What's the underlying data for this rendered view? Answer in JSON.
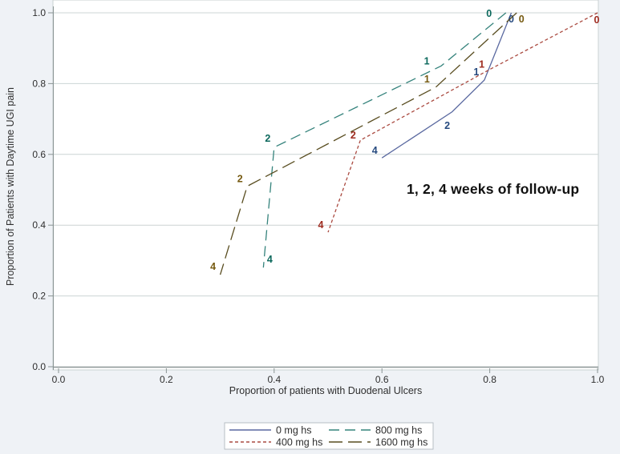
{
  "figure": {
    "background_color": "#eff2f6",
    "plot_background_color": "#ffffff",
    "gridline_color": "#ccd4d4",
    "axis_color": "#8a9494",
    "frame_color": "#c9d1d1",
    "tick_text_color": "#2f2f2f"
  },
  "chart_data": {
    "type": "line",
    "title": "",
    "xlabel": "Proportion of patients with Duodenal Ulcers",
    "ylabel": "Proportion of Patients with Daytime UGI pain",
    "annotation": "1, 2, 4 weeks of follow-up",
    "point_label_meaning": "weeks of follow-up (0, 1, 2, 4)",
    "xlim": [
      0.0,
      1.0
    ],
    "ylim": [
      0.0,
      1.0
    ],
    "xtick_labels": [
      "0.0",
      "0.2",
      "0.4",
      "0.6",
      "0.8",
      "1.0"
    ],
    "ytick_labels": [
      "0.0",
      "0.2",
      "0.4",
      "0.6",
      "0.8",
      "1.0"
    ],
    "xticks": [
      0.0,
      0.2,
      0.4,
      0.6,
      0.8,
      1.0
    ],
    "yticks": [
      0.0,
      0.2,
      0.4,
      0.6,
      0.8,
      1.0
    ],
    "grid": "horizontal",
    "legend_position": "bottom",
    "series": [
      {
        "name": "0 mg hs",
        "color": "#5a69a0",
        "label_color": "#25497e",
        "dasharray": "",
        "points": [
          {
            "week": "0",
            "x": 0.84,
            "y": 1.0,
            "dx": 0,
            "dy": 8
          },
          {
            "week": "1",
            "x": 0.79,
            "y": 0.81,
            "dx": -10,
            "dy": -10
          },
          {
            "week": "2",
            "x": 0.73,
            "y": 0.72,
            "dx": -6,
            "dy": 17
          },
          {
            "week": "4",
            "x": 0.6,
            "y": 0.59,
            "dx": -9,
            "dy": -9
          }
        ]
      },
      {
        "name": "400 mg hs",
        "color": "#aa4a40",
        "label_color": "#9e2b1f",
        "dasharray": "4 3",
        "points": [
          {
            "week": "0",
            "x": 1.0,
            "y": 1.0,
            "dx": -1,
            "dy": 9
          },
          {
            "week": "1",
            "x": 0.8,
            "y": 0.84,
            "dx": -10,
            "dy": -6
          },
          {
            "week": "2",
            "x": 0.56,
            "y": 0.64,
            "dx": -9,
            "dy": -6
          },
          {
            "week": "4",
            "x": 0.5,
            "y": 0.38,
            "dx": -9,
            "dy": -9
          }
        ]
      },
      {
        "name": "800 mg hs",
        "color": "#35837c",
        "label_color": "#0b685c",
        "dasharray": "13 7",
        "points": [
          {
            "week": "0",
            "x": 0.83,
            "y": 1.0,
            "dx": -21,
            "dy": 1
          },
          {
            "week": "1",
            "x": 0.71,
            "y": 0.85,
            "dx": -18,
            "dy": -6
          },
          {
            "week": "2",
            "x": 0.4,
            "y": 0.62,
            "dx": -8,
            "dy": -11
          },
          {
            "week": "4",
            "x": 0.38,
            "y": 0.28,
            "dx": 8,
            "dy": -10
          }
        ]
      },
      {
        "name": "1600 mg hs",
        "color": "#594d20",
        "label_color": "#765a11",
        "dasharray": "17 7",
        "points": [
          {
            "week": "0",
            "x": 0.85,
            "y": 1.0,
            "dx": 6,
            "dy": 8
          },
          {
            "week": "1",
            "x": 0.7,
            "y": 0.79,
            "dx": -11,
            "dy": -10
          },
          {
            "week": "2",
            "x": 0.35,
            "y": 0.51,
            "dx": -9,
            "dy": -9
          },
          {
            "week": "4",
            "x": 0.3,
            "y": 0.26,
            "dx": -9,
            "dy": -10
          }
        ]
      }
    ],
    "legend_layout_rows": [
      [
        0,
        2
      ],
      [
        1,
        3
      ]
    ],
    "legend_border_color": "#b7bfc4",
    "legend_background": "#ffffff"
  }
}
